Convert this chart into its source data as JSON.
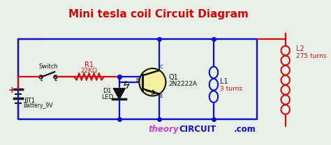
{
  "title": "Mini tesla coil Circuit Diagram",
  "title_color": "#dd0000",
  "title_fontsize": 11,
  "bg_color": "#e8f0e8",
  "blue": "#1010cc",
  "red": "#cc1010",
  "black": "#111111",
  "yellow": "#f5f0a0",
  "watermark_theory": "#cc44cc",
  "watermark_circuit": "#1010cc",
  "labels": {
    "switch": "Switch",
    "r1": "R1",
    "r1_val": "22KΩ",
    "bt1": "BT1",
    "bt1_val": "Battery_9V",
    "d1": "D1",
    "d1_val": "LED",
    "q1": "Q1",
    "q1_val": "2N2222A",
    "l1": "L1",
    "l1_val": "3 turns",
    "l2": "L2",
    "l2_val": "275 turns",
    "b_label": "B",
    "c_label": "C",
    "e_label": "E"
  }
}
